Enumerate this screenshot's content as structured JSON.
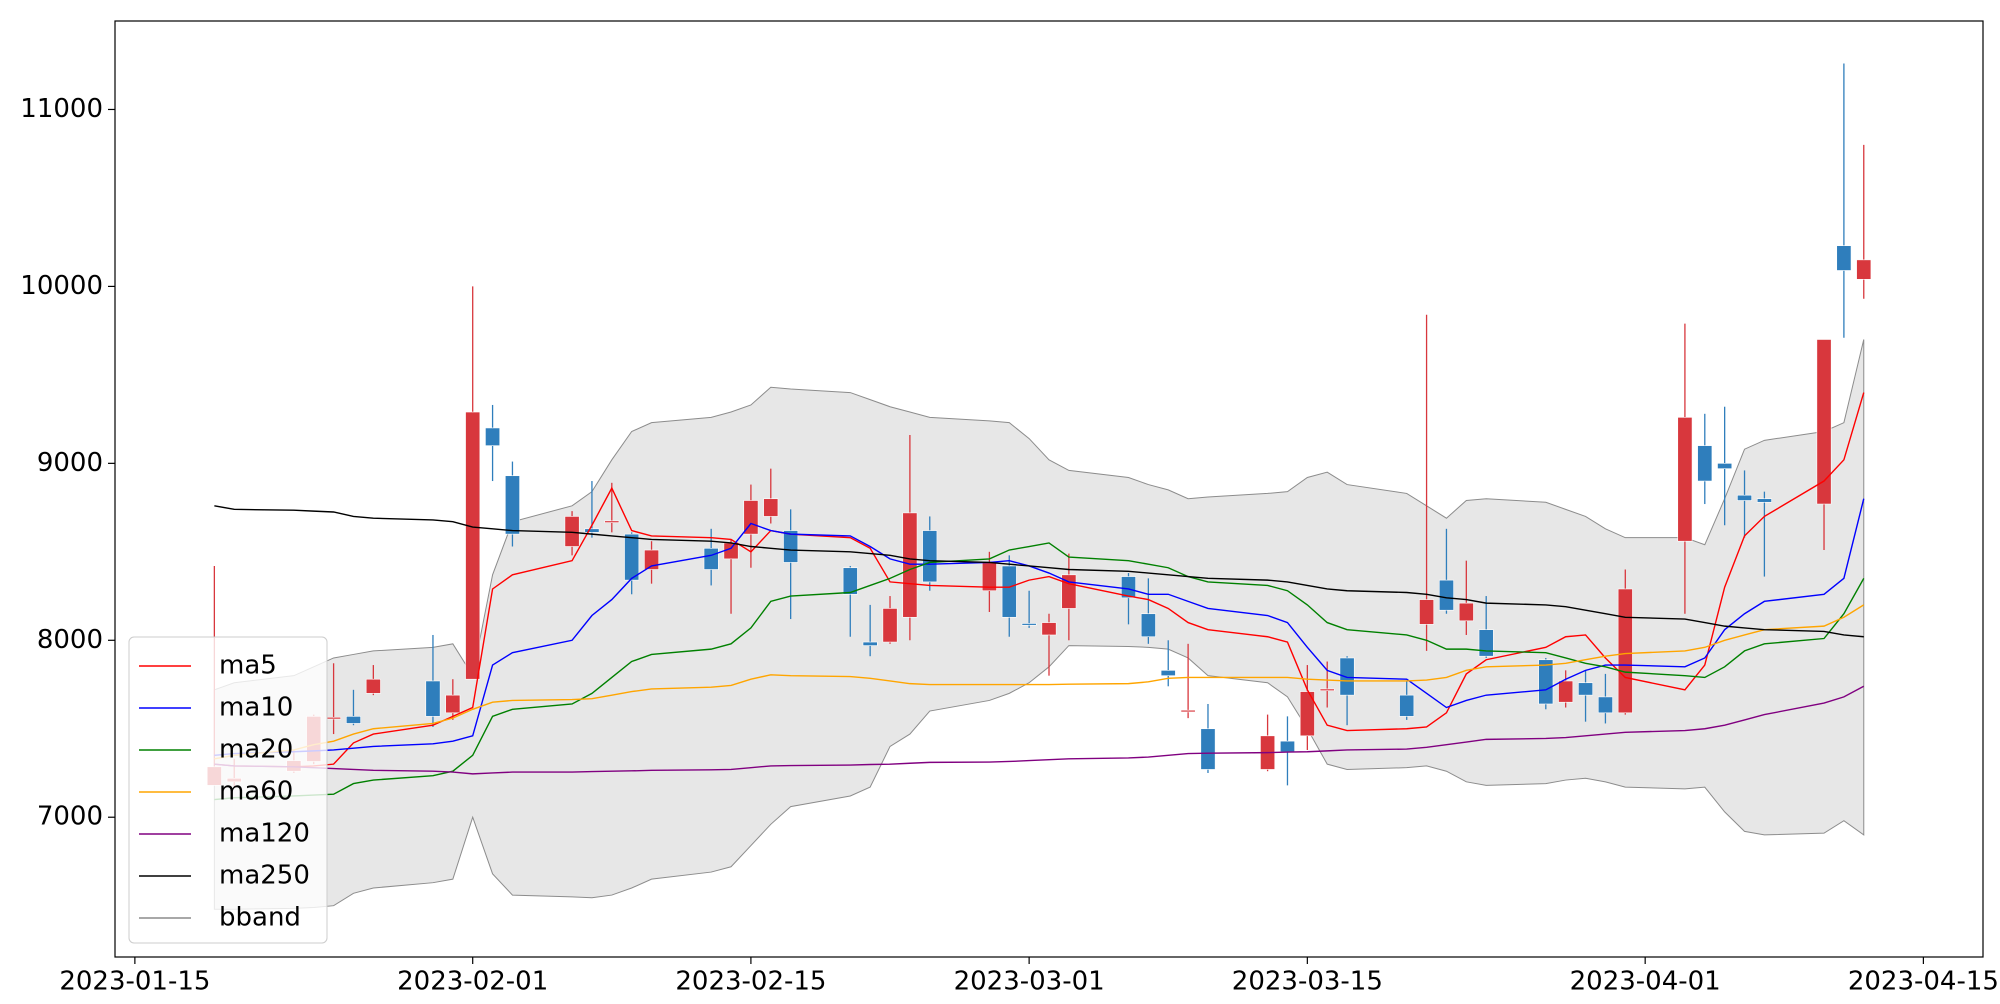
{
  "chart_data": {
    "type": "candlestick",
    "x": [
      "2023-01-19",
      "2023-01-20",
      "2023-01-23",
      "2023-01-24",
      "2023-01-25",
      "2023-01-26",
      "2023-01-27",
      "2023-01-30",
      "2023-01-31",
      "2023-02-01",
      "2023-02-02",
      "2023-02-03",
      "2023-02-06",
      "2023-02-07",
      "2023-02-08",
      "2023-02-09",
      "2023-02-10",
      "2023-02-13",
      "2023-02-14",
      "2023-02-15",
      "2023-02-16",
      "2023-02-17",
      "2023-02-20",
      "2023-02-21",
      "2023-02-22",
      "2023-02-23",
      "2023-02-24",
      "2023-02-27",
      "2023-02-28",
      "2023-03-01",
      "2023-03-02",
      "2023-03-03",
      "2023-03-06",
      "2023-03-07",
      "2023-03-08",
      "2023-03-09",
      "2023-03-10",
      "2023-03-13",
      "2023-03-14",
      "2023-03-15",
      "2023-03-16",
      "2023-03-17",
      "2023-03-20",
      "2023-03-21",
      "2023-03-22",
      "2023-03-23",
      "2023-03-24",
      "2023-03-27",
      "2023-03-28",
      "2023-03-29",
      "2023-03-30",
      "2023-03-31",
      "2023-04-03",
      "2023-04-04",
      "2023-04-05",
      "2023-04-06",
      "2023-04-07",
      "2023-04-10",
      "2023-04-11",
      "2023-04-12"
    ],
    "open": [
      7180,
      7200,
      7260,
      7315,
      7555,
      7570,
      7700,
      7770,
      7590,
      7780,
      9200,
      8930,
      8530,
      8630,
      8665,
      8600,
      8400,
      8520,
      8460,
      8600,
      8700,
      8620,
      8410,
      7990,
      7990,
      8130,
      8620,
      8280,
      8420,
      8095,
      8030,
      8180,
      8360,
      8150,
      7830,
      7595,
      7500,
      7270,
      7430,
      7460,
      7715,
      7900,
      7690,
      8090,
      8340,
      8110,
      8060,
      7890,
      7650,
      7760,
      7680,
      7590,
      8560,
      9100,
      9000,
      8820,
      8800,
      8770,
      10230,
      10040
    ],
    "high": [
      8420,
      7330,
      7380,
      7580,
      7870,
      7720,
      7860,
      8030,
      7780,
      10000,
      9330,
      9010,
      8730,
      8900,
      8890,
      8610,
      8560,
      8630,
      8570,
      8880,
      8970,
      8740,
      8420,
      8200,
      8250,
      9160,
      8700,
      8500,
      8480,
      8280,
      8150,
      8490,
      8380,
      8350,
      8000,
      7980,
      7640,
      7580,
      7570,
      7860,
      7880,
      7910,
      7770,
      9840,
      8630,
      8450,
      8250,
      7900,
      7830,
      7830,
      7810,
      8400,
      9790,
      9280,
      9320,
      8960,
      8840,
      9700,
      11260,
      10800
    ],
    "low": [
      7180,
      7170,
      7250,
      7300,
      7470,
      7520,
      7690,
      7510,
      7550,
      7780,
      8900,
      8530,
      8480,
      8580,
      8610,
      8260,
      8320,
      8310,
      8150,
      8410,
      8660,
      8120,
      8020,
      7910,
      7980,
      8000,
      8280,
      8160,
      8020,
      8070,
      7800,
      8000,
      8090,
      7980,
      7740,
      7560,
      7250,
      7260,
      7180,
      7380,
      7620,
      7520,
      7550,
      7940,
      8150,
      8030,
      7900,
      7610,
      7620,
      7540,
      7530,
      7580,
      8150,
      8770,
      8650,
      8580,
      8360,
      8510,
      9710,
      9930
    ],
    "close": [
      7285,
      7220,
      7320,
      7570,
      7565,
      7530,
      7780,
      7570,
      7690,
      9290,
      9100,
      8600,
      8700,
      8610,
      8675,
      8340,
      8510,
      8400,
      8550,
      8790,
      8800,
      8440,
      8260,
      7970,
      8180,
      8720,
      8330,
      8440,
      8130,
      8085,
      8100,
      8370,
      8240,
      8020,
      7800,
      7605,
      7270,
      7460,
      7370,
      7710,
      7725,
      7690,
      7570,
      8230,
      8170,
      8210,
      7910,
      7640,
      7770,
      7690,
      7590,
      8290,
      9260,
      8900,
      8970,
      8790,
      8780,
      9700,
      10090,
      10150
    ],
    "up_color": "#d8373d",
    "down_color": "#2f7ebc",
    "series": [
      {
        "name": "ma5",
        "color": "#ff0000",
        "values": [
          7300,
          7290,
          7285,
          7290,
          7300,
          7420,
          7470,
          7520,
          7570,
          7620,
          8290,
          8370,
          8450,
          8650,
          8860,
          8620,
          8590,
          8580,
          8570,
          8500,
          8620,
          8600,
          8580,
          8520,
          8330,
          8320,
          8310,
          8300,
          8300,
          8340,
          8360,
          8320,
          8250,
          8230,
          8180,
          8100,
          8060,
          8020,
          7990,
          7720,
          7520,
          7490,
          7500,
          7510,
          7590,
          7810,
          7890,
          7960,
          8020,
          8030,
          7900,
          7790,
          7720,
          7860,
          8300,
          8590,
          8700,
          8900,
          9020,
          9400
        ]
      },
      {
        "name": "ma10",
        "color": "#0000ff",
        "values": [
          7350,
          7360,
          7370,
          7375,
          7380,
          7390,
          7400,
          7415,
          7430,
          7460,
          7860,
          7930,
          8000,
          8140,
          8230,
          8350,
          8420,
          8480,
          8520,
          8660,
          8620,
          8600,
          8590,
          8530,
          8460,
          8430,
          8430,
          8440,
          8450,
          8420,
          8380,
          8330,
          8290,
          8260,
          8260,
          8220,
          8180,
          8140,
          8100,
          7960,
          7830,
          7790,
          7780,
          7700,
          7620,
          7660,
          7690,
          7720,
          7780,
          7830,
          7860,
          7860,
          7850,
          7900,
          8060,
          8150,
          8220,
          8260,
          8350,
          8800
        ]
      },
      {
        "name": "ma20",
        "color": "#008000",
        "values": [
          7100,
          7110,
          7120,
          7125,
          7130,
          7190,
          7210,
          7235,
          7260,
          7350,
          7570,
          7610,
          7640,
          7700,
          7790,
          7880,
          7920,
          7950,
          7980,
          8070,
          8220,
          8250,
          8270,
          8310,
          8350,
          8400,
          8440,
          8460,
          8510,
          8530,
          8550,
          8470,
          8450,
          8430,
          8410,
          8360,
          8330,
          8310,
          8280,
          8200,
          8100,
          8060,
          8030,
          8000,
          7950,
          7950,
          7940,
          7930,
          7900,
          7870,
          7850,
          7820,
          7800,
          7790,
          7850,
          7940,
          7980,
          8010,
          8150,
          8350
        ]
      },
      {
        "name": "ma60",
        "color": "#ffa500",
        "values": [
          7330,
          7350,
          7380,
          7410,
          7430,
          7470,
          7500,
          7530,
          7560,
          7610,
          7650,
          7660,
          7665,
          7670,
          7690,
          7710,
          7725,
          7735,
          7745,
          7780,
          7805,
          7800,
          7795,
          7785,
          7770,
          7755,
          7750,
          7750,
          7750,
          7750,
          7750,
          7752,
          7755,
          7765,
          7785,
          7790,
          7790,
          7790,
          7790,
          7780,
          7775,
          7770,
          7770,
          7775,
          7790,
          7830,
          7850,
          7860,
          7870,
          7890,
          7910,
          7925,
          7940,
          7960,
          8000,
          8030,
          8060,
          8080,
          8130,
          8200
        ]
      },
      {
        "name": "ma120",
        "color": "#800080",
        "values": [
          7300,
          7290,
          7285,
          7280,
          7275,
          7270,
          7265,
          7260,
          7255,
          7245,
          7250,
          7255,
          7255,
          7258,
          7260,
          7262,
          7265,
          7268,
          7270,
          7280,
          7290,
          7292,
          7295,
          7298,
          7300,
          7305,
          7310,
          7312,
          7315,
          7320,
          7325,
          7330,
          7335,
          7340,
          7350,
          7360,
          7362,
          7365,
          7368,
          7370,
          7375,
          7380,
          7385,
          7395,
          7410,
          7425,
          7440,
          7445,
          7450,
          7460,
          7470,
          7480,
          7490,
          7500,
          7520,
          7550,
          7580,
          7645,
          7680,
          7740
        ]
      },
      {
        "name": "ma250",
        "color": "#000000",
        "values": [
          8760,
          8740,
          8735,
          8730,
          8725,
          8700,
          8690,
          8680,
          8670,
          8640,
          8630,
          8620,
          8610,
          8600,
          8590,
          8580,
          8570,
          8560,
          8550,
          8530,
          8520,
          8510,
          8500,
          8490,
          8480,
          8460,
          8450,
          8440,
          8430,
          8420,
          8410,
          8400,
          8390,
          8380,
          8370,
          8360,
          8350,
          8340,
          8330,
          8310,
          8290,
          8280,
          8270,
          8260,
          8240,
          8230,
          8210,
          8200,
          8190,
          8170,
          8150,
          8130,
          8120,
          8100,
          8080,
          8070,
          8060,
          8050,
          8030,
          8020
        ]
      },
      {
        "name": "bband",
        "color": "#8c8c8c",
        "fill": "#e3e3e3",
        "kind": "band",
        "values": [
          7720,
          7760,
          7800,
          7850,
          7900,
          7920,
          7940,
          7960,
          7980,
          7800,
          8370,
          8670,
          8760,
          8840,
          9020,
          9180,
          9230,
          9260,
          9290,
          9330,
          9430,
          9420,
          9400,
          9360,
          9320,
          9290,
          9260,
          9240,
          9230,
          9140,
          9020,
          8960,
          8920,
          8880,
          8850,
          8800,
          8810,
          8830,
          8840,
          8920,
          8950,
          8880,
          8830,
          8760,
          8690,
          8790,
          8800,
          8780,
          8740,
          8700,
          8630,
          8580,
          8580,
          8540,
          8800,
          9080,
          9130,
          9180,
          9230,
          9700
        ],
        "lower": [
          6480,
          6480,
          6485,
          6490,
          6500,
          6570,
          6600,
          6630,
          6650,
          7000,
          6680,
          6560,
          6550,
          6545,
          6560,
          6600,
          6650,
          6690,
          6720,
          6840,
          6960,
          7060,
          7120,
          7170,
          7400,
          7470,
          7600,
          7660,
          7700,
          7760,
          7850,
          7970,
          7965,
          7960,
          7950,
          7900,
          7800,
          7760,
          7680,
          7500,
          7300,
          7270,
          7280,
          7290,
          7260,
          7200,
          7180,
          7190,
          7210,
          7220,
          7200,
          7170,
          7160,
          7170,
          7030,
          6920,
          6900,
          6910,
          6980,
          6900
        ]
      }
    ],
    "xlim": [
      "2023-01-14",
      "2023-04-18"
    ],
    "ylim": [
      6210,
      11500
    ],
    "xticks": [
      "2023-01-15",
      "2023-02-01",
      "2023-02-15",
      "2023-03-01",
      "2023-03-15",
      "2023-04-01",
      "2023-04-15"
    ],
    "yticks": [
      7000,
      8000,
      9000,
      10000,
      11000
    ],
    "legend": "lower left"
  }
}
